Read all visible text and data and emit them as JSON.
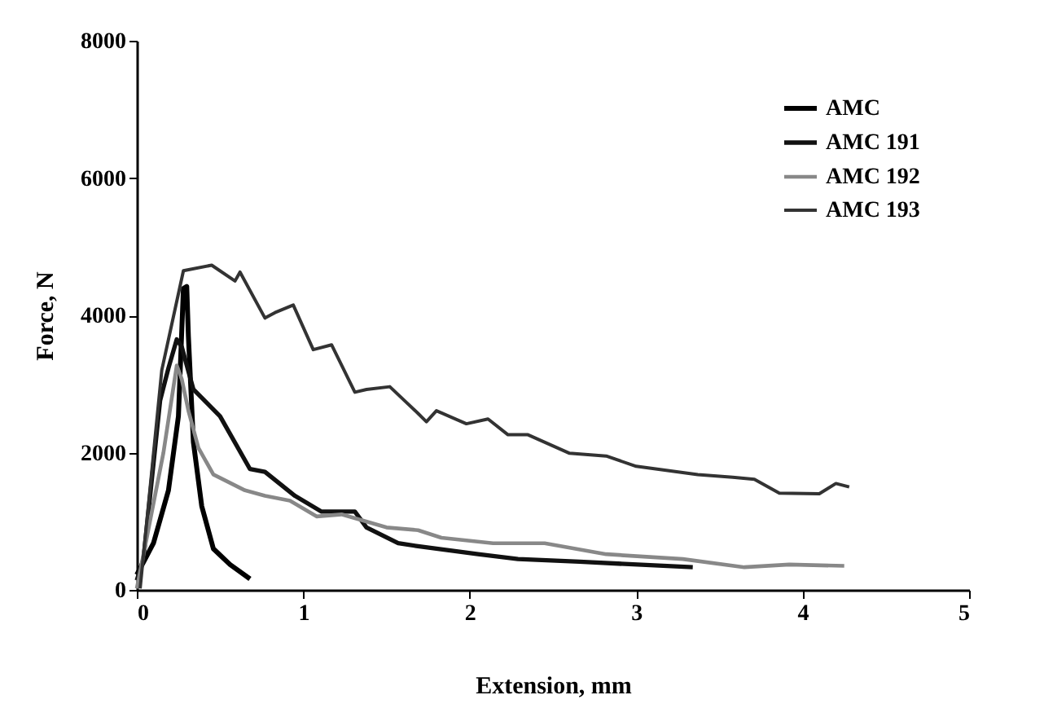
{
  "chart_data": {
    "type": "line",
    "xlabel": "Extension, mm",
    "ylabel": "Force, N",
    "xlim": [
      0,
      5
    ],
    "xticks": [
      0,
      1,
      2,
      3,
      4,
      5
    ],
    "ylim": [
      0,
      8000
    ],
    "yticks": [
      0,
      2000,
      4000,
      6000,
      8000
    ],
    "grid": false,
    "legend": "top right",
    "marker": "none",
    "line_style": "solid",
    "series": [
      {
        "name": "AMC",
        "color": "#000000",
        "x": [
          0,
          0.05,
          0.1,
          0.19,
          0.25,
          0.28,
          0.3,
          0.31,
          0.34,
          0.39,
          0.46,
          0.56,
          0.68
        ],
        "values": [
          220,
          450,
          680,
          1450,
          2530,
          4390,
          4420,
          3690,
          2150,
          1220,
          600,
          370,
          160
        ]
      },
      {
        "name": "AMC 191",
        "color": "#111111",
        "x": [
          0,
          0.04,
          0.14,
          0.19,
          0.24,
          0.27,
          0.34,
          0.5,
          0.68,
          0.77,
          0.95,
          1.11,
          1.31,
          1.38,
          1.57,
          1.68,
          2.05,
          2.29,
          2.66,
          3.34
        ],
        "values": [
          140,
          450,
          2760,
          3230,
          3650,
          3540,
          2920,
          2530,
          1760,
          1720,
          1370,
          1140,
          1140,
          910,
          680,
          640,
          520,
          450,
          410,
          330
        ]
      },
      {
        "name": "AMC 192",
        "color": "#888888",
        "x": [
          0,
          0.16,
          0.24,
          0.27,
          0.31,
          0.37,
          0.46,
          0.65,
          0.77,
          0.92,
          1.08,
          1.23,
          1.5,
          1.69,
          1.83,
          2.14,
          2.45,
          2.82,
          3.28,
          3.65,
          3.92,
          4.25
        ],
        "values": [
          20,
          2000,
          3270,
          3070,
          2610,
          2070,
          1680,
          1450,
          1370,
          1300,
          1070,
          1100,
          910,
          870,
          760,
          680,
          680,
          520,
          450,
          330,
          370,
          350
        ]
      },
      {
        "name": "AMC 193",
        "color": "#333333",
        "x": [
          0.02,
          0.15,
          0.28,
          0.45,
          0.59,
          0.62,
          0.77,
          0.83,
          0.94,
          1.06,
          1.17,
          1.31,
          1.38,
          1.52,
          1.69,
          1.74,
          1.8,
          1.98,
          2.11,
          2.23,
          2.35,
          2.6,
          2.82,
          3.0,
          3.37,
          3.58,
          3.71,
          3.86,
          4.1,
          4.2,
          4.28
        ],
        "values": [
          20,
          3200,
          4650,
          4730,
          4500,
          4630,
          3960,
          4040,
          4150,
          3500,
          3570,
          2880,
          2920,
          2960,
          2570,
          2450,
          2610,
          2420,
          2490,
          2260,
          2260,
          1990,
          1950,
          1800,
          1680,
          1640,
          1610,
          1410,
          1400,
          1550,
          1500
        ]
      }
    ]
  }
}
